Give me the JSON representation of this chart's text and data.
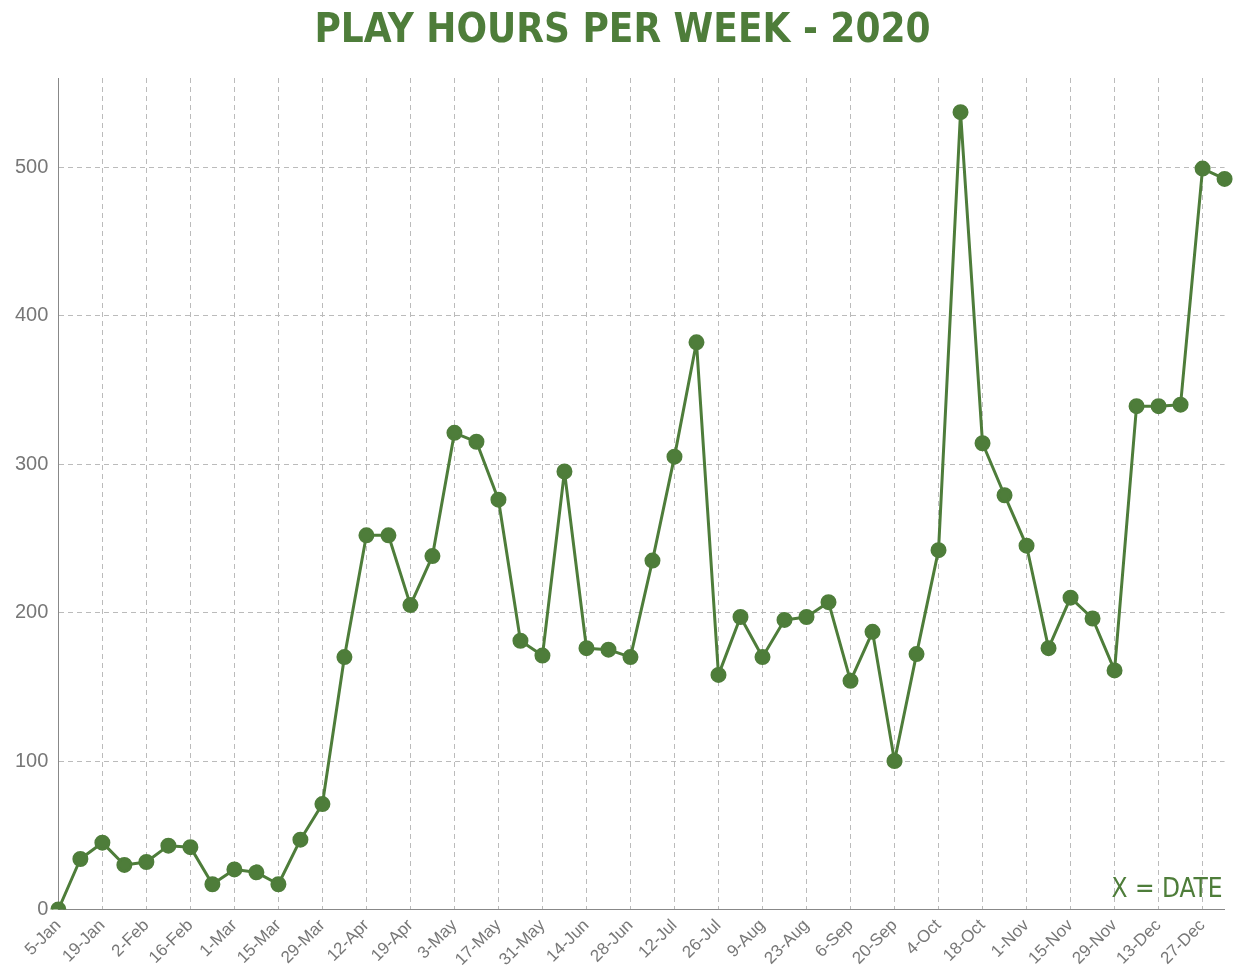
{
  "chart_data": {
    "type": "line",
    "title": "PLAY HOURS PER WEEK - 2020",
    "categories": [
      "5-Jan",
      null,
      "19-Jan",
      null,
      "2-Feb",
      null,
      "16-Feb",
      null,
      "1-Mar",
      null,
      "15-Mar",
      null,
      "29-Mar",
      null,
      "12-Apr",
      null,
      "19-Apr",
      null,
      "3-May",
      null,
      "17-May",
      null,
      "31-May",
      null,
      "14-Jun",
      null,
      "28-Jun",
      null,
      "12-Jul",
      null,
      "26-Jul",
      null,
      "9-Aug",
      null,
      "23-Aug",
      null,
      "6-Sep",
      null,
      "20-Sep",
      null,
      "4-Oct",
      null,
      "18-Oct",
      null,
      "1-Nov",
      null,
      "15-Nov",
      null,
      "29-Nov",
      null,
      "13-Dec",
      null,
      "27-Dec",
      null
    ],
    "series": [
      {
        "color": "#4e7d3a",
        "values": [
          0,
          34,
          45,
          30,
          32,
          43,
          42,
          17,
          27,
          25,
          17,
          47,
          71,
          170,
          252,
          252,
          205,
          238,
          321,
          315,
          276,
          181,
          171,
          295,
          176,
          175,
          170,
          235,
          305,
          382,
          158,
          197,
          170,
          195,
          197,
          207,
          154,
          187,
          100,
          172,
          242,
          537,
          314,
          279,
          245,
          176,
          210,
          196,
          161,
          339,
          339,
          340,
          499,
          492
        ]
      }
    ],
    "ylim": [
      0,
      560
    ],
    "yticks": [
      0,
      100,
      200,
      300,
      400,
      500
    ],
    "grid": true,
    "legend": false,
    "marker": "circle",
    "line_style": "solid",
    "annotations": [
      "X = DATE"
    ]
  }
}
